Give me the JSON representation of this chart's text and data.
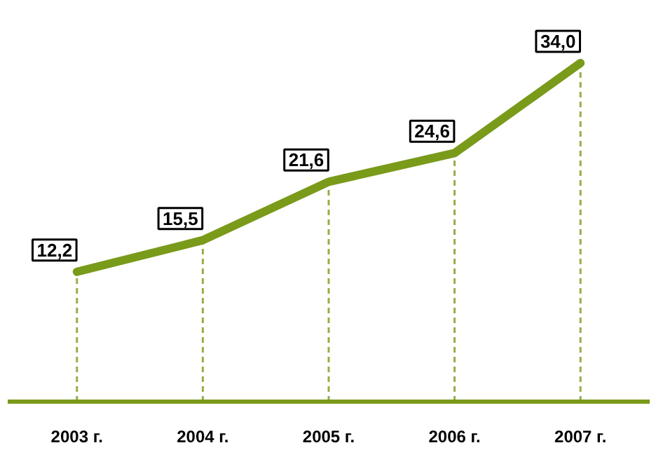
{
  "chart_data": {
    "type": "line",
    "categories": [
      "2003 г.",
      "2004 г.",
      "2005 г.",
      "2006 г.",
      "2007 г."
    ],
    "series": [
      {
        "color": "#7a9a1a",
        "values": [
          12.2,
          15.5,
          21.6,
          24.6,
          34.0
        ],
        "value_labels": [
          "12,2",
          "15,5",
          "21,6",
          "24,6",
          "34,0"
        ]
      }
    ],
    "grid": "x",
    "marker": "none",
    "line_style": "solid"
  }
}
